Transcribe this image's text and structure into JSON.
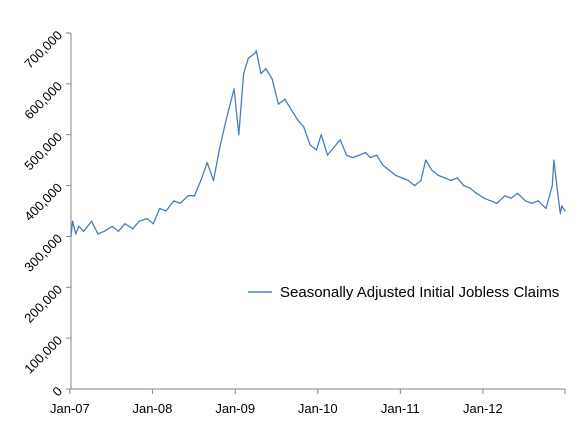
{
  "chart_data": {
    "type": "line",
    "title": "",
    "xlabel": "",
    "ylabel": "",
    "x_ticks": [
      "Jan-07",
      "Jan-08",
      "Jan-09",
      "Jan-10",
      "Jan-11",
      "Jan-12"
    ],
    "y_ticks": [
      "0",
      "100,000",
      "200,000",
      "300,000",
      "400,000",
      "500,000",
      "600,000",
      "700,000"
    ],
    "ylim": [
      0,
      700000
    ],
    "xlim": [
      "2007-01-06",
      "2012-12-29"
    ],
    "grid": false,
    "legend_position": "right",
    "colors": {
      "series": "#4a7ebb",
      "axis": "#868686"
    },
    "series": [
      {
        "name": "Seasonally Adjusted Initial Jobless Claims",
        "points": [
          [
            "2007-01-06",
            300000
          ],
          [
            "2007-01-13",
            330000
          ],
          [
            "2007-01-27",
            305000
          ],
          [
            "2007-02-10",
            320000
          ],
          [
            "2007-03-03",
            310000
          ],
          [
            "2007-04-07",
            330000
          ],
          [
            "2007-05-05",
            305000
          ],
          [
            "2007-06-02",
            310000
          ],
          [
            "2007-07-07",
            320000
          ],
          [
            "2007-08-04",
            310000
          ],
          [
            "2007-09-01",
            325000
          ],
          [
            "2007-10-06",
            315000
          ],
          [
            "2007-11-03",
            330000
          ],
          [
            "2007-12-08",
            335000
          ],
          [
            "2008-01-05",
            325000
          ],
          [
            "2008-02-02",
            355000
          ],
          [
            "2008-03-01",
            350000
          ],
          [
            "2008-04-05",
            370000
          ],
          [
            "2008-05-03",
            365000
          ],
          [
            "2008-06-07",
            380000
          ],
          [
            "2008-07-05",
            380000
          ],
          [
            "2008-08-02",
            410000
          ],
          [
            "2008-08-30",
            445000
          ],
          [
            "2008-09-27",
            410000
          ],
          [
            "2008-10-25",
            475000
          ],
          [
            "2008-11-22",
            530000
          ],
          [
            "2008-12-27",
            590000
          ],
          [
            "2009-01-17",
            500000
          ],
          [
            "2009-02-07",
            620000
          ],
          [
            "2009-02-28",
            650000
          ],
          [
            "2009-03-28",
            660000
          ],
          [
            "2009-04-04",
            665000
          ],
          [
            "2009-04-25",
            620000
          ],
          [
            "2009-05-16",
            630000
          ],
          [
            "2009-06-13",
            610000
          ],
          [
            "2009-07-11",
            560000
          ],
          [
            "2009-08-08",
            570000
          ],
          [
            "2009-09-05",
            550000
          ],
          [
            "2009-10-03",
            530000
          ],
          [
            "2009-10-31",
            515000
          ],
          [
            "2009-11-28",
            480000
          ],
          [
            "2009-12-26",
            470000
          ],
          [
            "2010-01-16",
            500000
          ],
          [
            "2010-02-13",
            460000
          ],
          [
            "2010-03-13",
            475000
          ],
          [
            "2010-04-10",
            490000
          ],
          [
            "2010-05-08",
            460000
          ],
          [
            "2010-06-05",
            455000
          ],
          [
            "2010-07-03",
            460000
          ],
          [
            "2010-07-31",
            465000
          ],
          [
            "2010-08-21",
            455000
          ],
          [
            "2010-09-18",
            460000
          ],
          [
            "2010-10-16",
            440000
          ],
          [
            "2010-11-13",
            430000
          ],
          [
            "2010-12-11",
            420000
          ],
          [
            "2011-01-08",
            415000
          ],
          [
            "2011-02-05",
            410000
          ],
          [
            "2011-03-05",
            400000
          ],
          [
            "2011-04-02",
            410000
          ],
          [
            "2011-04-23",
            450000
          ],
          [
            "2011-05-21",
            430000
          ],
          [
            "2011-06-18",
            420000
          ],
          [
            "2011-07-16",
            415000
          ],
          [
            "2011-08-13",
            410000
          ],
          [
            "2011-09-10",
            415000
          ],
          [
            "2011-10-08",
            400000
          ],
          [
            "2011-11-05",
            395000
          ],
          [
            "2011-12-03",
            385000
          ],
          [
            "2012-01-07",
            375000
          ],
          [
            "2012-02-04",
            370000
          ],
          [
            "2012-03-03",
            365000
          ],
          [
            "2012-04-07",
            380000
          ],
          [
            "2012-05-05",
            375000
          ],
          [
            "2012-06-02",
            385000
          ],
          [
            "2012-07-07",
            370000
          ],
          [
            "2012-08-04",
            365000
          ],
          [
            "2012-09-01",
            370000
          ],
          [
            "2012-10-06",
            355000
          ],
          [
            "2012-11-03",
            400000
          ],
          [
            "2012-11-10",
            450000
          ],
          [
            "2012-11-24",
            395000
          ],
          [
            "2012-12-08",
            345000
          ],
          [
            "2012-12-15",
            360000
          ],
          [
            "2012-12-29",
            350000
          ]
        ]
      }
    ]
  }
}
